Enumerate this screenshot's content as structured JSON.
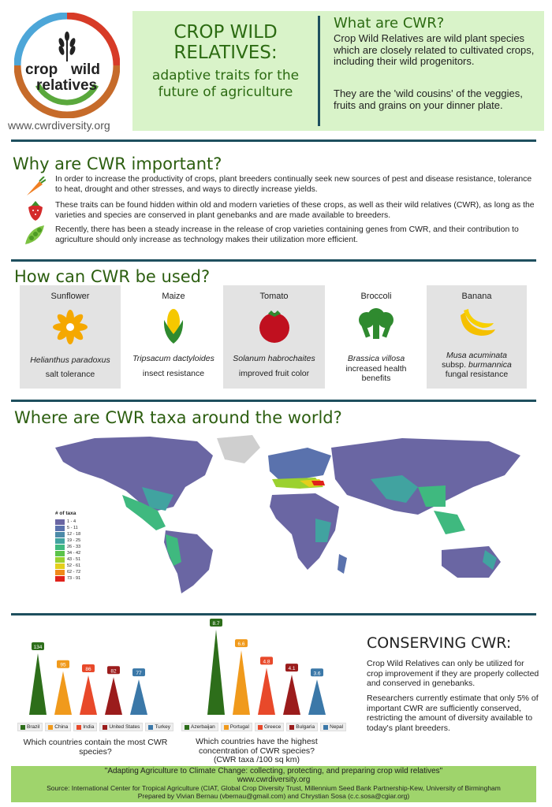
{
  "header": {
    "logo_top": "crop",
    "logo_wild": "wild",
    "logo_bottom": "relatives",
    "url": "www.cwrdiversity.org",
    "title": "CROP WILD RELATIVES:",
    "subtitle": "adaptive traits for the future of agriculture",
    "what_title": "What are CWR?",
    "what_p1": "Crop Wild Relatives are wild plant species which are closely related to cultivated crops, including their wild progenitors.",
    "what_p2": "They are the 'wild cousins' of the veggies, fruits and grains on your dinner plate."
  },
  "why": {
    "title": "Why are CWR important?",
    "items": [
      {
        "icon": "carrot-icon",
        "text": "In order to increase the productivity of crops, plant breeders continually seek new sources of pest and disease resistance, tolerance to heat, drought and other stresses, and ways to directly increase yields."
      },
      {
        "icon": "strawberry-icon",
        "text": "These traits can be found hidden within old and modern varieties of these crops, as well as their wild relatives (CWR), as long as the varieties and species are conserved in plant genebanks and are made available to breeders."
      },
      {
        "icon": "pea-pod-icon",
        "text": "Recently, there has been a steady increase in the release of crop varieties containing genes from CWR, and their contribution to agriculture should only increase as technology makes their utilization more efficient."
      }
    ]
  },
  "used": {
    "title": "How can CWR be used?",
    "cards": [
      {
        "name": "Sunflower",
        "species": "Helianthus paradoxus",
        "trait": "salt tolerance",
        "icon": "sunflower-icon"
      },
      {
        "name": "Maize",
        "species": "Tripsacum dactyloides",
        "trait": "insect resistance",
        "icon": "maize-icon"
      },
      {
        "name": "Tomato",
        "species": "Solanum habrochaites",
        "trait": "improved fruit color",
        "icon": "tomato-icon"
      },
      {
        "name": "Broccoli",
        "species": "Brassica villosa",
        "trait": "increased health benefits",
        "icon": "broccoli-icon"
      },
      {
        "name": "Banana",
        "species": "Musa acuminata",
        "species_line2_a": "subsp.",
        "species_line2_b": "burmannica",
        "trait": "fungal resistance",
        "icon": "banana-icon"
      }
    ]
  },
  "map": {
    "title": "Where are CWR taxa around the world?",
    "legend_title": "# of taxa",
    "legend": [
      {
        "label": "1 - 4",
        "color": "#6a66a3"
      },
      {
        "label": "5 - 11",
        "color": "#5a72ad"
      },
      {
        "label": "12 - 18",
        "color": "#4c8aa8"
      },
      {
        "label": "19 - 25",
        "color": "#41a3a0"
      },
      {
        "label": "26 - 33",
        "color": "#3fb97f"
      },
      {
        "label": "34 - 42",
        "color": "#5bc34a"
      },
      {
        "label": "43 - 51",
        "color": "#9bd12f"
      },
      {
        "label": "52 - 61",
        "color": "#e4cf1c"
      },
      {
        "label": "62 - 72",
        "color": "#f08a1a"
      },
      {
        "label": "73 - 91",
        "color": "#e0221b"
      }
    ]
  },
  "chart_data": [
    {
      "type": "bar",
      "categories": [
        "Brazil",
        "China",
        "India",
        "United States",
        "Turkey"
      ],
      "values": [
        134,
        95,
        86,
        82,
        77
      ],
      "colors": [
        "#2d6e1a",
        "#f09a1c",
        "#e8492a",
        "#9b1c1c",
        "#3b78a8"
      ],
      "xlabel": "Which countries contain the most CWR species?"
    },
    {
      "type": "bar",
      "categories": [
        "Azerbaijan",
        "Portugal",
        "Greece",
        "Bulgaria",
        "Nepal"
      ],
      "values": [
        8.7,
        6.6,
        4.8,
        4.1,
        3.6
      ],
      "colors": [
        "#2d6e1a",
        "#f09a1c",
        "#e8492a",
        "#9b1c1c",
        "#3b78a8"
      ],
      "xlabel": "Which countries have the highest concentration of CWR species?",
      "ylabel": "(CWR taxa /100 sq km)"
    }
  ],
  "conserving": {
    "title": "CONSERVING CWR:",
    "p1": "Crop Wild Relatives can only be utilized for crop improvement if they are properly collected and conserved in genebanks.",
    "p2": "Researchers currently estimate that only 5% of important CWR are sufficiently conserved, restricting the amount of diversity available to today's plant breeders."
  },
  "footer": {
    "quote": "\"Adapting Agriculture to Climate Change: collecting, protecting, and preparing crop wild relatives\"",
    "url": "www.cwrdiversity.org",
    "source": "Source: International Center for Tropical Agriculture (CIAT, Global Crop Diversity Trust, Millennium Seed Bank Partnership-Kew, University of Birmingham",
    "prepared": "Prepared by Vivian Bernau (vbernau@gmail.com) and Chrystian Sosa (c.c.sosa@cgiar.org)"
  }
}
